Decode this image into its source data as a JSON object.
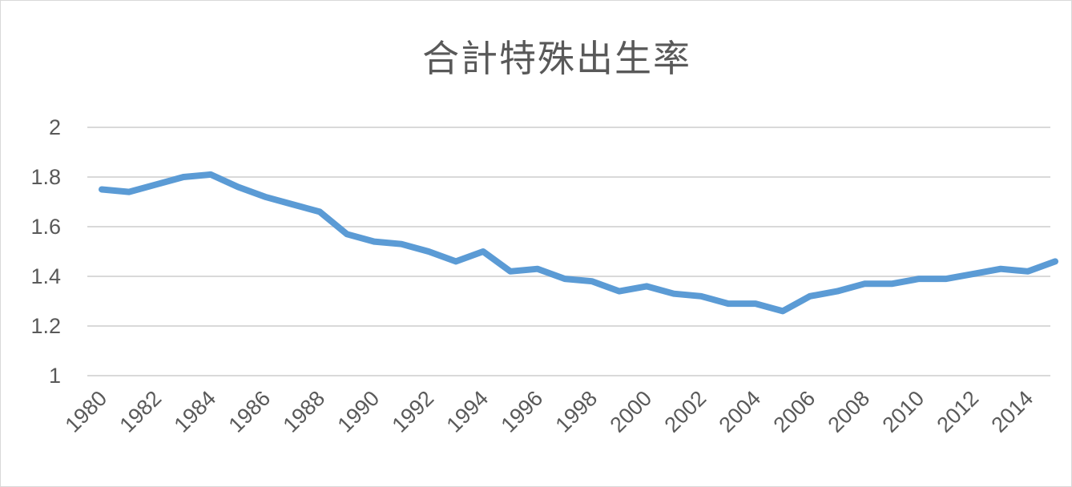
{
  "chart_data": {
    "type": "line",
    "title": "合計特殊出生率",
    "xlabel": "",
    "ylabel": "",
    "ylim": [
      1,
      2
    ],
    "yticks": [
      1,
      1.2,
      1.4,
      1.6,
      1.8,
      2
    ],
    "ytick_labels": [
      "1",
      "1.2",
      "1.4",
      "1.6",
      "1.8",
      "2"
    ],
    "x": [
      1980,
      1981,
      1982,
      1983,
      1984,
      1985,
      1986,
      1987,
      1988,
      1989,
      1990,
      1991,
      1992,
      1993,
      1994,
      1995,
      1996,
      1997,
      1998,
      1999,
      2000,
      2001,
      2002,
      2003,
      2004,
      2005,
      2006,
      2007,
      2008,
      2009,
      2010,
      2011,
      2012,
      2013,
      2014,
      2015
    ],
    "xtick_labels": [
      "1980",
      "1982",
      "1984",
      "1986",
      "1988",
      "1990",
      "1992",
      "1994",
      "1996",
      "1998",
      "2000",
      "2002",
      "2004",
      "2006",
      "2008",
      "2010",
      "2012",
      "2014"
    ],
    "grid": true,
    "legend": "none",
    "series": [
      {
        "color": "#5b9bd5",
        "values": [
          1.75,
          1.74,
          1.77,
          1.8,
          1.81,
          1.76,
          1.72,
          1.69,
          1.66,
          1.57,
          1.54,
          1.53,
          1.5,
          1.46,
          1.5,
          1.42,
          1.43,
          1.39,
          1.38,
          1.34,
          1.36,
          1.33,
          1.32,
          1.29,
          1.29,
          1.26,
          1.32,
          1.34,
          1.37,
          1.37,
          1.39,
          1.39,
          1.41,
          1.43,
          1.42,
          1.46
        ]
      }
    ]
  }
}
